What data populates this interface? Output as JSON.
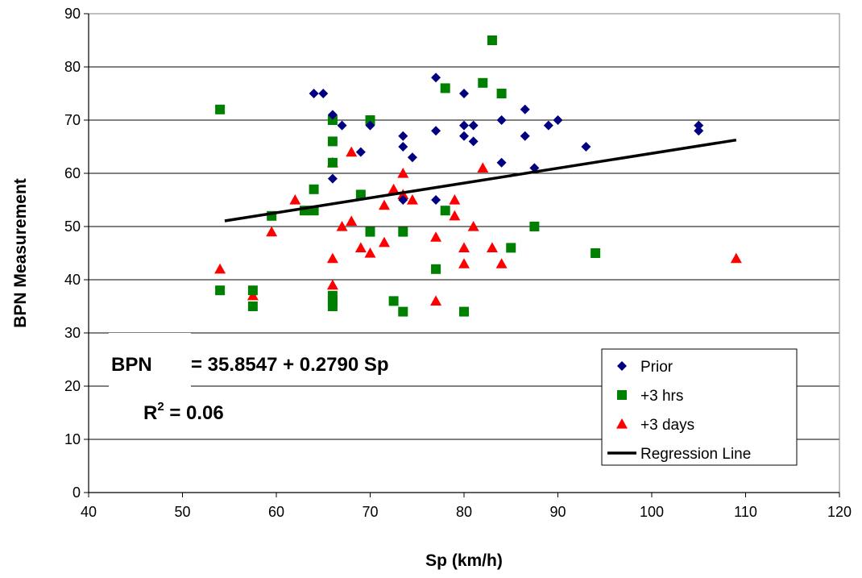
{
  "chart_data": {
    "type": "scatter",
    "xlabel": "Sp (km/h)",
    "ylabel": "BPN Measurement",
    "xlim": [
      40,
      120
    ],
    "ylim": [
      0,
      90
    ],
    "xticks": [
      "40",
      "50",
      "60",
      "70",
      "80",
      "90",
      "100",
      "110",
      "120"
    ],
    "yticks": [
      "0",
      "10",
      "20",
      "30",
      "40",
      "50",
      "60",
      "70",
      "80",
      "90"
    ],
    "grid": "horizontal",
    "legend_position": "bottom-right",
    "colors": {
      "prior": "#000080",
      "hrs": "#008000",
      "days": "#ff0000",
      "line": "#000000"
    },
    "series": [
      {
        "name": "Prior",
        "marker": "diamond",
        "points": [
          [
            64,
            75
          ],
          [
            65,
            75
          ],
          [
            66,
            71
          ],
          [
            66,
            59
          ],
          [
            67,
            69
          ],
          [
            69,
            64
          ],
          [
            70,
            69
          ],
          [
            73.5,
            65
          ],
          [
            73.5,
            67
          ],
          [
            73.5,
            55
          ],
          [
            74.5,
            63
          ],
          [
            77,
            78
          ],
          [
            77,
            68
          ],
          [
            77,
            55
          ],
          [
            80,
            75
          ],
          [
            80,
            69
          ],
          [
            80,
            67
          ],
          [
            81,
            69
          ],
          [
            81,
            66
          ],
          [
            84,
            70
          ],
          [
            84,
            62
          ],
          [
            86.5,
            72
          ],
          [
            86.5,
            67
          ],
          [
            87.5,
            61
          ],
          [
            89,
            69
          ],
          [
            90,
            70
          ],
          [
            93,
            65
          ],
          [
            105,
            69
          ],
          [
            105,
            68
          ]
        ]
      },
      {
        "name": "+3 hrs",
        "marker": "square",
        "points": [
          [
            54,
            72
          ],
          [
            54,
            38
          ],
          [
            57.5,
            38
          ],
          [
            57.5,
            35
          ],
          [
            59.5,
            52
          ],
          [
            63,
            53
          ],
          [
            64,
            53
          ],
          [
            64,
            57
          ],
          [
            66,
            70
          ],
          [
            66,
            66
          ],
          [
            66,
            62
          ],
          [
            66,
            37
          ],
          [
            66,
            36
          ],
          [
            66,
            35
          ],
          [
            69,
            56
          ],
          [
            70,
            70
          ],
          [
            70,
            49
          ],
          [
            72.5,
            36
          ],
          [
            73.5,
            49
          ],
          [
            73.5,
            34
          ],
          [
            77,
            42
          ],
          [
            78,
            76
          ],
          [
            78,
            53
          ],
          [
            80,
            34
          ],
          [
            82,
            77
          ],
          [
            83,
            85
          ],
          [
            84,
            75
          ],
          [
            85,
            46
          ],
          [
            87.5,
            50
          ],
          [
            94,
            45
          ]
        ]
      },
      {
        "name": "+3 days",
        "marker": "triangle",
        "points": [
          [
            54,
            42
          ],
          [
            57.5,
            37
          ],
          [
            59.5,
            49
          ],
          [
            62,
            55
          ],
          [
            66,
            62
          ],
          [
            66,
            44
          ],
          [
            66,
            39
          ],
          [
            67,
            50
          ],
          [
            68,
            64
          ],
          [
            68,
            51
          ],
          [
            69,
            46
          ],
          [
            70,
            45
          ],
          [
            71.5,
            47
          ],
          [
            71.5,
            54
          ],
          [
            72.5,
            57
          ],
          [
            73.5,
            56
          ],
          [
            73.5,
            60
          ],
          [
            74.5,
            55
          ],
          [
            77,
            48
          ],
          [
            77,
            36
          ],
          [
            79,
            55
          ],
          [
            79,
            52
          ],
          [
            80,
            46
          ],
          [
            80,
            43
          ],
          [
            81,
            50
          ],
          [
            82,
            61
          ],
          [
            83,
            46
          ],
          [
            84,
            43
          ],
          [
            109,
            44
          ]
        ]
      },
      {
        "name": "Regression Line",
        "type": "line",
        "points": [
          [
            54.5,
            51.06
          ],
          [
            109,
            66.26
          ]
        ]
      }
    ],
    "annotations": {
      "eq_lhs": "BPN",
      "eq_rhs": "= 35.8547 + 0.2790 Sp",
      "r2_base": "R",
      "r2_sup": "2",
      "r2_value": " = 0.06"
    }
  }
}
